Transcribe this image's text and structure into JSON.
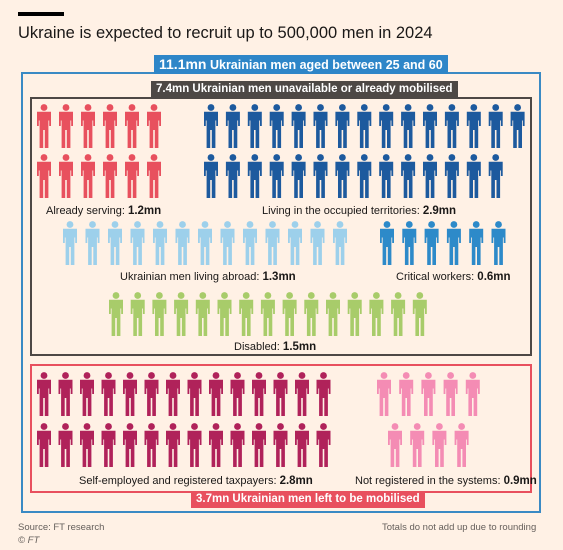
{
  "title": "Ukraine is expected to recruit up to 500,000 men in 2024",
  "total": {
    "value": "11.1mn",
    "text": "Ukrainian men aged between 25 and 60"
  },
  "unavailable": {
    "text": "7.4mn Ukrainian men unavailable or already mobilised"
  },
  "remaining": {
    "text": "3.7mn Ukrainian men left to be mobilised"
  },
  "groups": [
    {
      "name": "Already serving",
      "label": "Already serving: ",
      "value": "1.2mn",
      "color": "#e8505e",
      "count": 12,
      "category": "unavailable"
    },
    {
      "name": "Living in the occupied territories",
      "label": "Living in the occupied territories: ",
      "value": "2.9mn",
      "color": "#1d5a9e",
      "count": 29,
      "category": "unavailable"
    },
    {
      "name": "Ukrainian men living abroad",
      "label": "Ukrainian men living abroad: ",
      "value": "1.3mn",
      "color": "#9dd0eb",
      "count": 13,
      "category": "unavailable"
    },
    {
      "name": "Critical workers",
      "label": "Critical workers: ",
      "value": "0.6mn",
      "color": "#2d8ac9",
      "count": 6,
      "category": "unavailable"
    },
    {
      "name": "Disabled",
      "label": "Disabled: ",
      "value": "1.5mn",
      "color": "#a8cc6a",
      "count": 15,
      "category": "unavailable"
    },
    {
      "name": "Self-employed and registered taxpayers",
      "label": "Self-employed and registered taxpayers: ",
      "value": "2.8mn",
      "color": "#b0225a",
      "count": 28,
      "category": "remaining"
    },
    {
      "name": "Not registered in the systems",
      "label": "Not registered in the systems: ",
      "value": "0.9mn",
      "color": "#f48cb4",
      "count": 9,
      "category": "remaining"
    }
  ],
  "source": "Source: FT research",
  "copyright": "© FT",
  "note": "Totals do not add up due to rounding"
}
